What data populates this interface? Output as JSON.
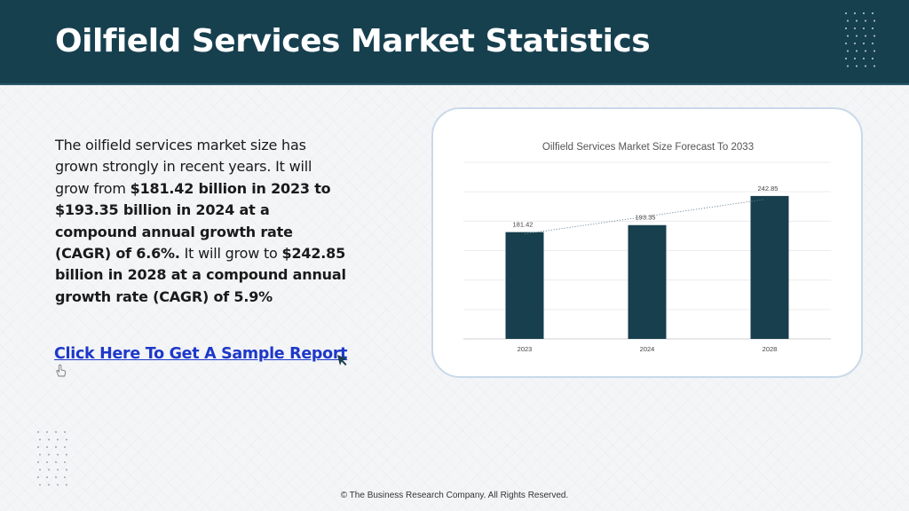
{
  "header": {
    "title": "Oilfield Services Market Statistics"
  },
  "description": {
    "segments": [
      {
        "text": "The oilfield services market size has grown strongly in recent years. It will grow from ",
        "bold": false
      },
      {
        "text": "$181.42 billion in 2023 to $193.35 billion in 2024 at a compound annual growth rate (CAGR) of 6.6%.",
        "bold": true
      },
      {
        "text": " It will grow to ",
        "bold": false
      },
      {
        "text": "$242.85 billion in 2028 at a compound annual growth rate (CAGR) of 5.9%",
        "bold": true
      }
    ]
  },
  "cta": {
    "label": "Click Here To Get A Sample Report"
  },
  "icons": {
    "cta_hand": "hand-pointer-icon",
    "cta_cursor": "cursor-arrow-icon",
    "decor": "dot-grid-icon"
  },
  "colors": {
    "header_bg": "#17404f",
    "bar": "#173f4d",
    "link": "#1d38c9",
    "card_border": "#c9d9ea"
  },
  "chart_data": {
    "type": "bar",
    "title": "Oilfield Services Market Size Forecast To 2033",
    "categories": [
      "2023",
      "2024",
      "2028"
    ],
    "values": [
      181.42,
      193.35,
      242.85
    ],
    "data_labels": [
      "181.42",
      "193.35",
      "242.85"
    ],
    "trendline": "dotted",
    "ylim": [
      0,
      300
    ],
    "grid": true,
    "xlabel": "",
    "ylabel": ""
  },
  "footer": {
    "text": "© The Business Research Company. All Rights Reserved."
  }
}
